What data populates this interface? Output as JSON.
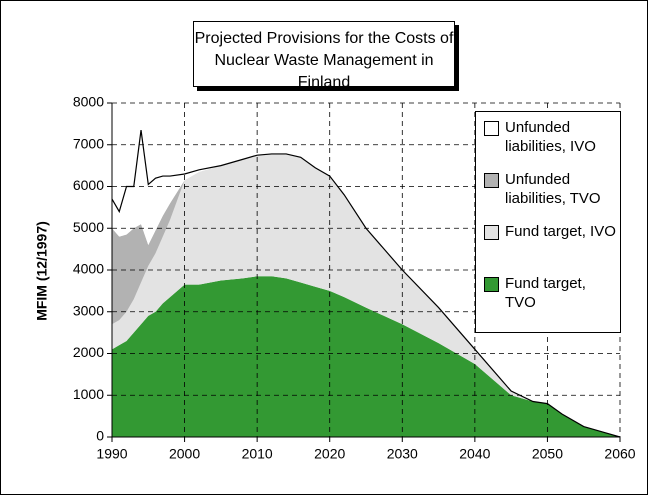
{
  "chart_data": {
    "type": "stacked_area",
    "title": "Projected Provisions for the Costs of Nuclear Waste Management in Finland",
    "ylabel": "MFIM (12/1997)",
    "x": [
      1990,
      1991,
      1992,
      1993,
      1994,
      1995,
      1996,
      1997,
      1998,
      2000,
      2002,
      2005,
      2008,
      2010,
      2012,
      2014,
      2016,
      2018,
      2020,
      2022,
      2025,
      2030,
      2035,
      2040,
      2045,
      2048,
      2050,
      2052,
      2055,
      2058,
      2060
    ],
    "series": [
      {
        "name": "Fund target, TVO",
        "color": "#339933",
        "values": [
          2100,
          2200,
          2300,
          2500,
          2700,
          2900,
          3000,
          3200,
          3350,
          3650,
          3650,
          3750,
          3800,
          3850,
          3850,
          3800,
          3700,
          3600,
          3500,
          3350,
          3100,
          2700,
          2250,
          1750,
          1000,
          850,
          800,
          550,
          250,
          100,
          0
        ]
      },
      {
        "name": "Fund target, IVO",
        "color": "#e3e3e3",
        "values": [
          600,
          600,
          700,
          800,
          1000,
          1200,
          1400,
          1600,
          1850,
          2500,
          2700,
          2750,
          2850,
          2900,
          2930,
          2980,
          3000,
          2850,
          2750,
          2450,
          1900,
          1300,
          850,
          350,
          100,
          0,
          0,
          0,
          0,
          0,
          0
        ]
      },
      {
        "name": "Unfunded liabilities, TVO",
        "color": "#b2b2b2",
        "values": [
          2300,
          2000,
          1850,
          1700,
          1400,
          500,
          550,
          500,
          400,
          0,
          0,
          0,
          0,
          0,
          0,
          0,
          0,
          0,
          0,
          0,
          0,
          0,
          0,
          0,
          0,
          0,
          0,
          0,
          0,
          0,
          0
        ]
      },
      {
        "name": "Unfunded liabilities, IVO",
        "color": "#ffffff",
        "values": [
          700,
          600,
          1150,
          1000,
          2250,
          1450,
          1250,
          950,
          650,
          150,
          50,
          0,
          0,
          0,
          0,
          0,
          0,
          0,
          0,
          0,
          0,
          0,
          0,
          0,
          0,
          0,
          0,
          0,
          0,
          0,
          0
        ]
      }
    ],
    "xlim": [
      1990,
      2060
    ],
    "xticks": [
      1990,
      2000,
      2010,
      2020,
      2030,
      2040,
      2050,
      2060
    ],
    "ylim": [
      0,
      8000
    ],
    "yticks": [
      0,
      1000,
      2000,
      3000,
      4000,
      5000,
      6000,
      7000,
      8000
    ],
    "grid": true,
    "legend": "right"
  }
}
